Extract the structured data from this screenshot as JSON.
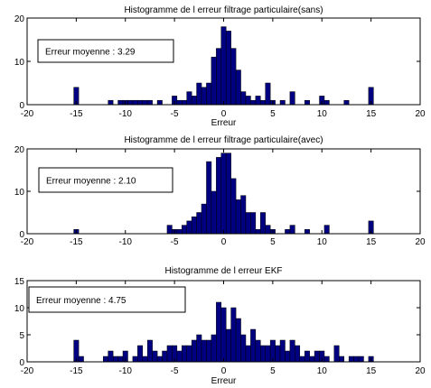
{
  "chart_data": [
    {
      "type": "bar",
      "title": "Histogramme de l erreur filtrage particulaire(sans)",
      "xlabel": "Erreur",
      "ylabel": "",
      "xlim": [
        -20,
        20
      ],
      "ylim": [
        0,
        20
      ],
      "xticks": [
        -20,
        -15,
        -10,
        -5,
        0,
        5,
        10,
        15,
        20
      ],
      "yticks": [
        0,
        10,
        20
      ],
      "bin_width": 0.5,
      "annotation": "Erreur moyenne : 3.29",
      "bar_color": "#000080",
      "bins": [
        {
          "x": -15.0,
          "y": 4
        },
        {
          "x": -11.5,
          "y": 1
        },
        {
          "x": -10.5,
          "y": 1
        },
        {
          "x": -10.0,
          "y": 1
        },
        {
          "x": -9.5,
          "y": 1
        },
        {
          "x": -9.0,
          "y": 1
        },
        {
          "x": -8.5,
          "y": 1
        },
        {
          "x": -8.0,
          "y": 1
        },
        {
          "x": -7.5,
          "y": 1
        },
        {
          "x": -6.5,
          "y": 1
        },
        {
          "x": -5.0,
          "y": 2
        },
        {
          "x": -4.5,
          "y": 1
        },
        {
          "x": -4.0,
          "y": 1
        },
        {
          "x": -3.5,
          "y": 3
        },
        {
          "x": -3.0,
          "y": 2
        },
        {
          "x": -2.5,
          "y": 5
        },
        {
          "x": -2.0,
          "y": 4
        },
        {
          "x": -1.5,
          "y": 5
        },
        {
          "x": -1.0,
          "y": 11
        },
        {
          "x": -0.5,
          "y": 13
        },
        {
          "x": 0.0,
          "y": 18
        },
        {
          "x": 0.5,
          "y": 17
        },
        {
          "x": 1.0,
          "y": 13
        },
        {
          "x": 1.5,
          "y": 8
        },
        {
          "x": 2.0,
          "y": 3
        },
        {
          "x": 2.5,
          "y": 2
        },
        {
          "x": 3.0,
          "y": 1
        },
        {
          "x": 3.5,
          "y": 2
        },
        {
          "x": 4.0,
          "y": 1
        },
        {
          "x": 4.5,
          "y": 5
        },
        {
          "x": 5.0,
          "y": 1
        },
        {
          "x": 6.0,
          "y": 1
        },
        {
          "x": 7.0,
          "y": 3
        },
        {
          "x": 8.5,
          "y": 1
        },
        {
          "x": 10.0,
          "y": 2
        },
        {
          "x": 10.5,
          "y": 1
        },
        {
          "x": 12.5,
          "y": 1
        },
        {
          "x": 15.0,
          "y": 4
        }
      ]
    },
    {
      "type": "bar",
      "title": "Histogramme de l erreur filtrage particulaire(avec)",
      "xlabel": "Erreur",
      "ylabel": "",
      "xlim": [
        -20,
        20
      ],
      "ylim": [
        0,
        20
      ],
      "xticks": [
        -20,
        -15,
        -10,
        -5,
        0,
        5,
        10,
        15,
        20
      ],
      "yticks": [
        0,
        10,
        20
      ],
      "bin_width": 0.5,
      "annotation": "Erreur moyenne : 2.10",
      "bar_color": "#000080",
      "bins": [
        {
          "x": -15.0,
          "y": 1
        },
        {
          "x": -5.5,
          "y": 2
        },
        {
          "x": -5.0,
          "y": 1
        },
        {
          "x": -4.5,
          "y": 1
        },
        {
          "x": -4.0,
          "y": 2
        },
        {
          "x": -3.5,
          "y": 3
        },
        {
          "x": -3.0,
          "y": 4
        },
        {
          "x": -2.5,
          "y": 5
        },
        {
          "x": -2.0,
          "y": 7
        },
        {
          "x": -1.5,
          "y": 17
        },
        {
          "x": -1.0,
          "y": 10
        },
        {
          "x": -0.5,
          "y": 18
        },
        {
          "x": 0.0,
          "y": 19
        },
        {
          "x": 0.5,
          "y": 19
        },
        {
          "x": 1.0,
          "y": 13
        },
        {
          "x": 1.5,
          "y": 8
        },
        {
          "x": 2.0,
          "y": 9
        },
        {
          "x": 2.5,
          "y": 5
        },
        {
          "x": 3.0,
          "y": 5
        },
        {
          "x": 3.5,
          "y": 1
        },
        {
          "x": 4.0,
          "y": 5
        },
        {
          "x": 4.5,
          "y": 2
        },
        {
          "x": 5.0,
          "y": 1
        },
        {
          "x": 6.5,
          "y": 1
        },
        {
          "x": 7.0,
          "y": 2
        },
        {
          "x": 8.5,
          "y": 1
        },
        {
          "x": 10.5,
          "y": 2
        },
        {
          "x": 15.0,
          "y": 3
        }
      ]
    },
    {
      "type": "bar",
      "title": "Histogramme de l erreur EKF",
      "xlabel": "Erreur",
      "ylabel": "",
      "xlim": [
        -20,
        20
      ],
      "ylim": [
        0,
        15
      ],
      "xticks": [
        -20,
        -15,
        -10,
        -5,
        0,
        5,
        10,
        15,
        20
      ],
      "yticks": [
        0,
        5,
        10,
        15
      ],
      "bin_width": 0.5,
      "annotation": "Erreur moyenne : 4.75",
      "bar_color": "#000080",
      "bins": [
        {
          "x": -15.0,
          "y": 4
        },
        {
          "x": -14.5,
          "y": 1
        },
        {
          "x": -12.0,
          "y": 1
        },
        {
          "x": -11.5,
          "y": 2
        },
        {
          "x": -11.0,
          "y": 1
        },
        {
          "x": -10.5,
          "y": 1
        },
        {
          "x": -10.0,
          "y": 2
        },
        {
          "x": -9.0,
          "y": 1
        },
        {
          "x": -8.5,
          "y": 3
        },
        {
          "x": -8.0,
          "y": 1
        },
        {
          "x": -7.5,
          "y": 4
        },
        {
          "x": -7.0,
          "y": 2
        },
        {
          "x": -6.5,
          "y": 1
        },
        {
          "x": -6.0,
          "y": 2
        },
        {
          "x": -5.5,
          "y": 3
        },
        {
          "x": -5.0,
          "y": 3
        },
        {
          "x": -4.5,
          "y": 2
        },
        {
          "x": -4.0,
          "y": 3
        },
        {
          "x": -3.5,
          "y": 3
        },
        {
          "x": -3.0,
          "y": 4
        },
        {
          "x": -2.5,
          "y": 5
        },
        {
          "x": -2.0,
          "y": 4
        },
        {
          "x": -1.5,
          "y": 4
        },
        {
          "x": -1.0,
          "y": 5
        },
        {
          "x": -0.5,
          "y": 11
        },
        {
          "x": 0.0,
          "y": 10
        },
        {
          "x": 0.5,
          "y": 6
        },
        {
          "x": 1.0,
          "y": 10
        },
        {
          "x": 1.5,
          "y": 8
        },
        {
          "x": 2.0,
          "y": 5
        },
        {
          "x": 2.5,
          "y": 3
        },
        {
          "x": 3.0,
          "y": 6
        },
        {
          "x": 3.5,
          "y": 4
        },
        {
          "x": 4.0,
          "y": 3
        },
        {
          "x": 4.5,
          "y": 3
        },
        {
          "x": 5.0,
          "y": 4
        },
        {
          "x": 5.5,
          "y": 3
        },
        {
          "x": 6.0,
          "y": 4
        },
        {
          "x": 6.5,
          "y": 2
        },
        {
          "x": 7.0,
          "y": 4
        },
        {
          "x": 7.5,
          "y": 3
        },
        {
          "x": 8.0,
          "y": 1
        },
        {
          "x": 8.5,
          "y": 2
        },
        {
          "x": 9.0,
          "y": 1
        },
        {
          "x": 9.5,
          "y": 2
        },
        {
          "x": 10.0,
          "y": 2
        },
        {
          "x": 10.5,
          "y": 1
        },
        {
          "x": 11.5,
          "y": 3
        },
        {
          "x": 12.0,
          "y": 1
        },
        {
          "x": 13.0,
          "y": 1
        },
        {
          "x": 13.5,
          "y": 1
        },
        {
          "x": 14.0,
          "y": 1
        },
        {
          "x": 15.0,
          "y": 1
        }
      ]
    }
  ]
}
